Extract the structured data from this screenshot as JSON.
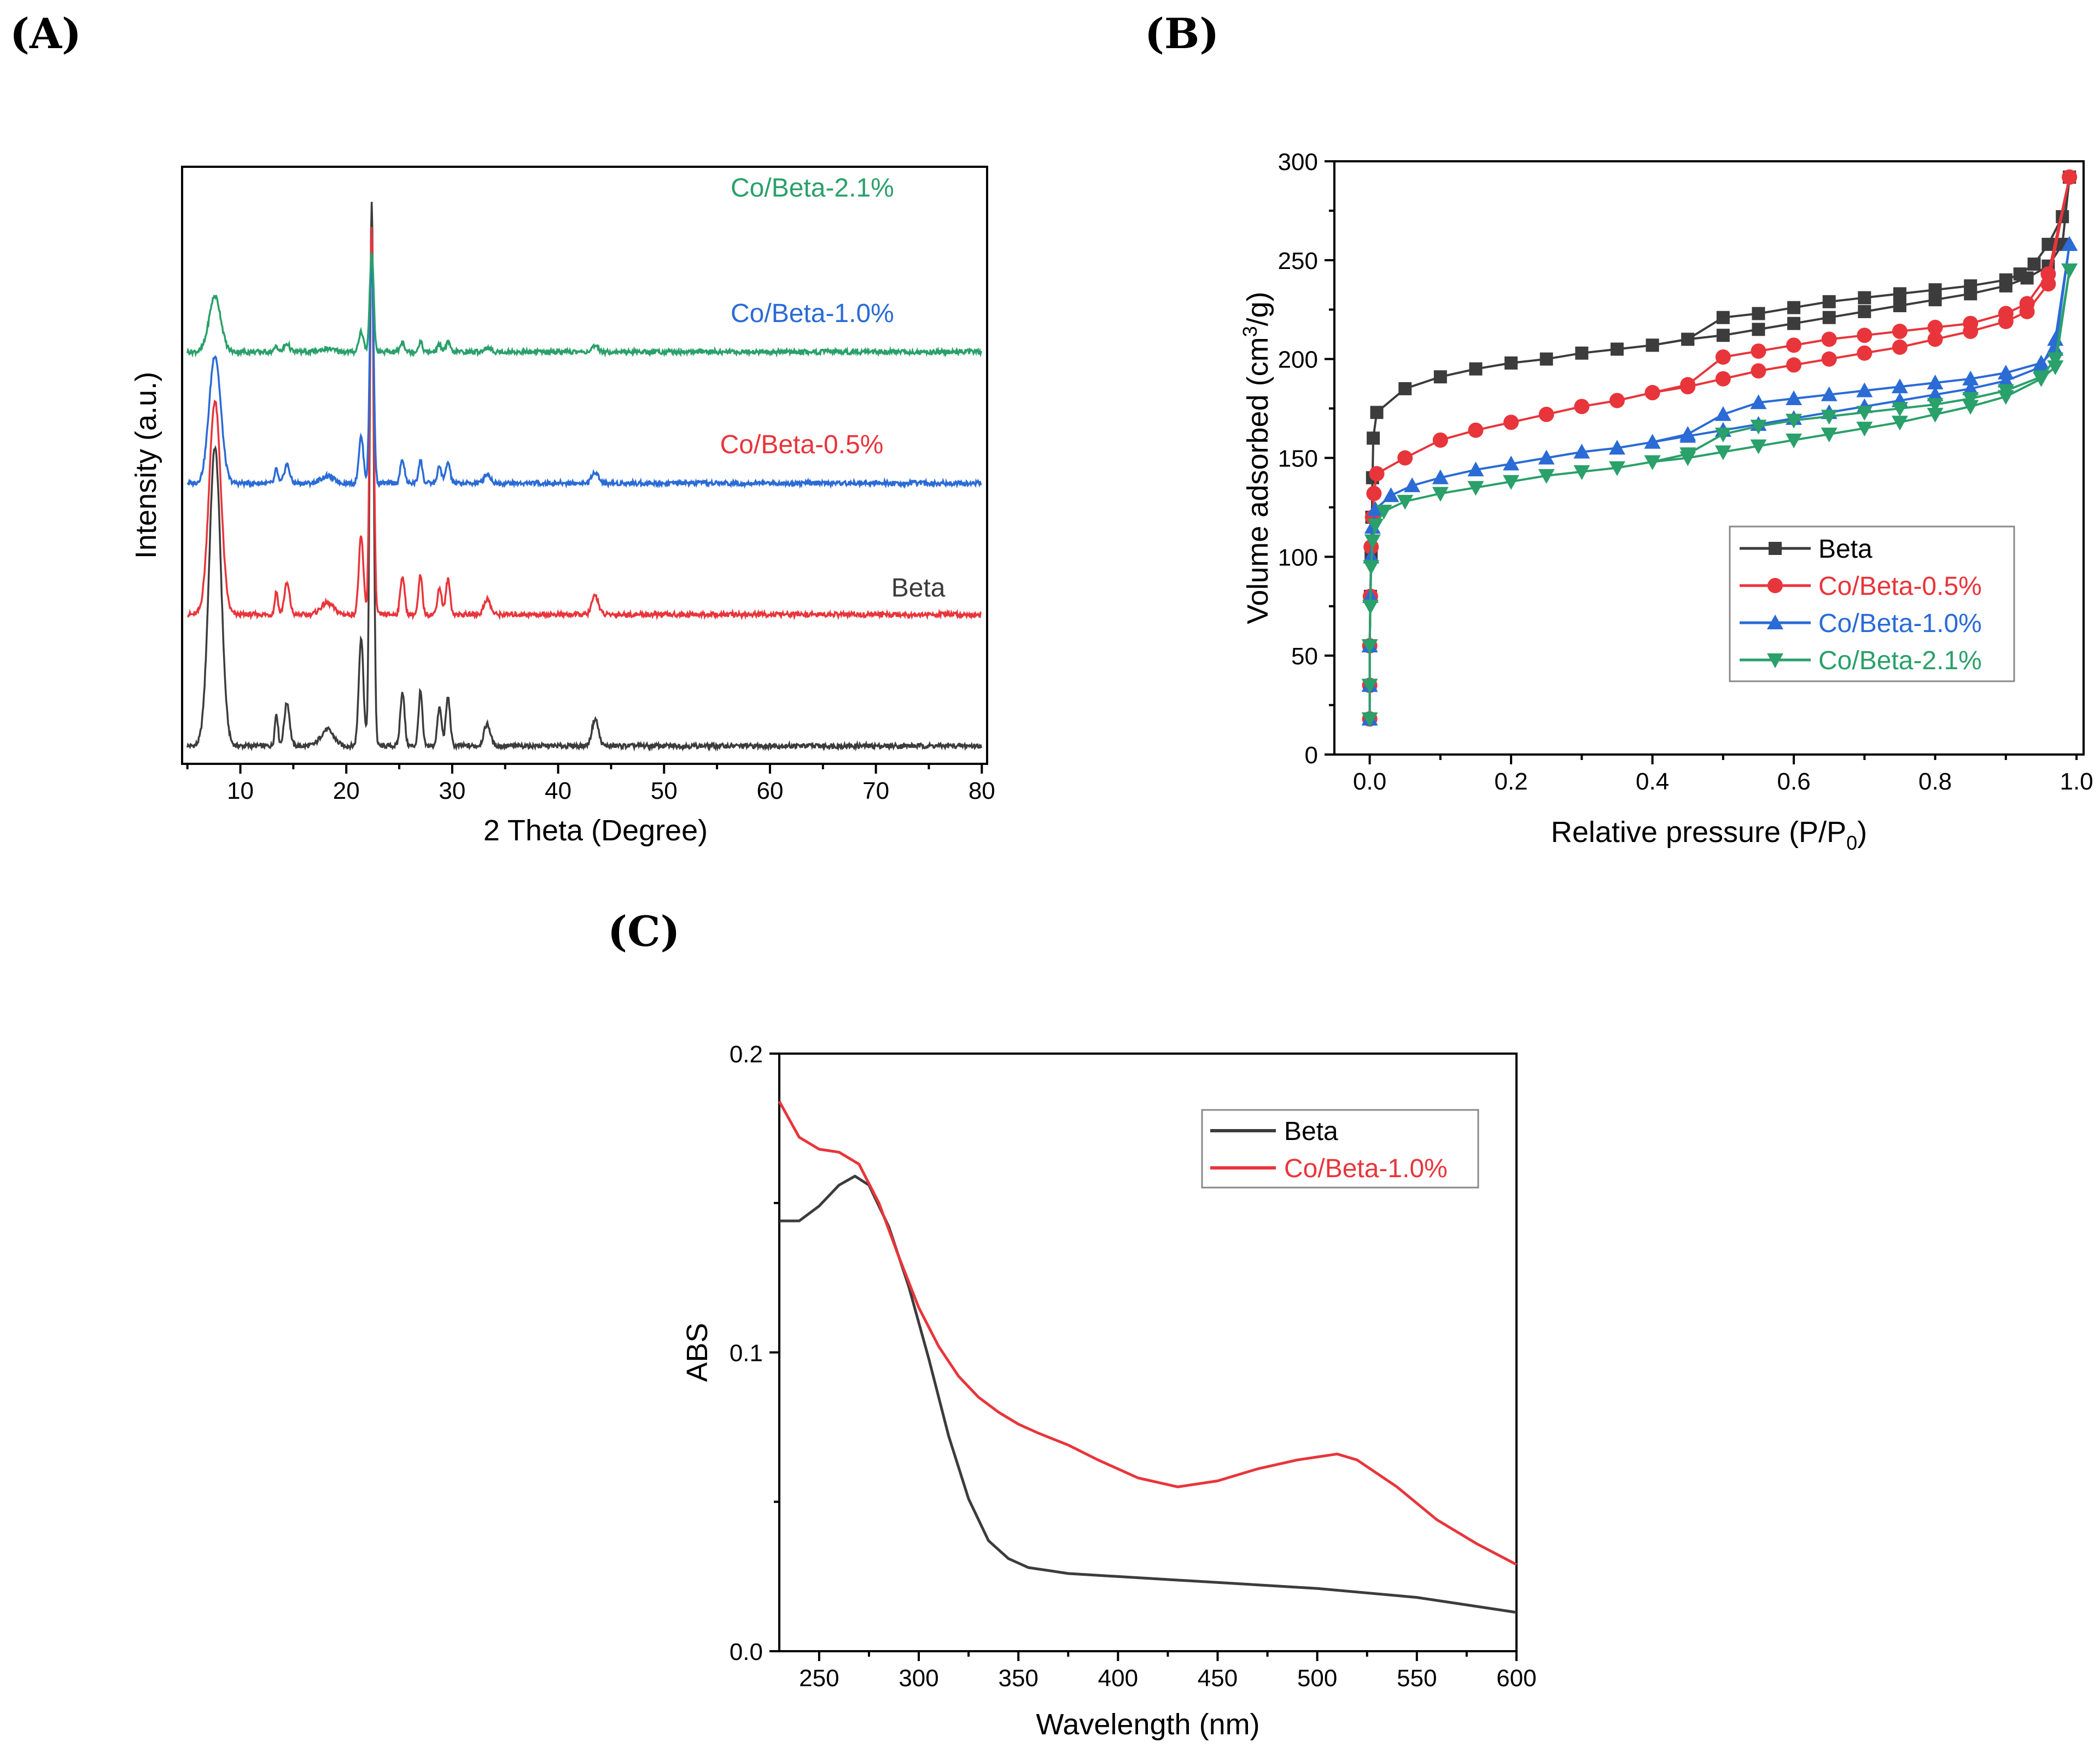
{
  "chart_data": [
    {
      "panel": "(A)",
      "type": "line",
      "title": "",
      "xlabel": "2 Theta (Degree)",
      "ylabel": "Intensity (a.u.)",
      "xlim": [
        4.5,
        80.5
      ],
      "xticks": [
        10,
        20,
        30,
        40,
        50,
        60,
        70,
        80
      ],
      "peaks": [
        {
          "pos": 7.6,
          "width": 0.55,
          "rel": 0.55
        },
        {
          "pos": 13.4,
          "width": 0.15,
          "rel": 0.06
        },
        {
          "pos": 14.4,
          "width": 0.25,
          "rel": 0.08
        },
        {
          "pos": 18.2,
          "width": 0.6,
          "rel": 0.03
        },
        {
          "pos": 21.4,
          "width": 0.22,
          "rel": 0.2
        },
        {
          "pos": 22.4,
          "width": 0.18,
          "rel": 1.0
        },
        {
          "pos": 25.3,
          "width": 0.2,
          "rel": 0.1
        },
        {
          "pos": 27.0,
          "width": 0.18,
          "rel": 0.1
        },
        {
          "pos": 28.8,
          "width": 0.2,
          "rel": 0.07
        },
        {
          "pos": 29.6,
          "width": 0.2,
          "rel": 0.09
        },
        {
          "pos": 33.3,
          "width": 0.3,
          "rel": 0.04
        },
        {
          "pos": 43.5,
          "width": 0.3,
          "rel": 0.05
        }
      ],
      "series": [
        {
          "name": "Beta",
          "color": "#3c3c3c",
          "baseline": 0.03,
          "main_peak": 0.94,
          "label_at": [
            74,
            0.28
          ]
        },
        {
          "name": "Co/Beta-0.5%",
          "color": "#e8353b",
          "baseline": 0.25,
          "main_peak": 0.9,
          "label_at": [
            63,
            0.52
          ]
        },
        {
          "name": "Co/Beta-1.0%",
          "color": "#2a6bd6",
          "baseline": 0.47,
          "main_peak": 0.86,
          "label_at": [
            64,
            0.74
          ]
        },
        {
          "name": "Co/Beta-2.1%",
          "color": "#2aa06a",
          "baseline": 0.69,
          "main_peak": 0.86,
          "label_at": [
            64,
            0.95
          ]
        }
      ]
    },
    {
      "panel": "(B)",
      "type": "line",
      "xlabel": "Relative pressure (P/P",
      "xlabel_sub": "0",
      "xlabel_tail": ")",
      "ylabel": "Volume adsorbed (cm",
      "ylabel_sup": "3",
      "ylabel_tail": "/g)",
      "xlim": [
        -0.05,
        1.01
      ],
      "ylim": [
        0,
        300
      ],
      "xticks": [
        "0.0",
        "0.2",
        "0.4",
        "0.6",
        "0.8",
        "1.0"
      ],
      "yticks": [
        0,
        50,
        100,
        150,
        200,
        250,
        300
      ],
      "legend": "right-middle",
      "series": [
        {
          "name": "Beta",
          "color": "#3c3c3c",
          "marker": "square",
          "adsorption": [
            [
              0,
              18
            ],
            [
              0,
              35
            ],
            [
              0,
              55
            ],
            [
              0.001,
              80
            ],
            [
              0.002,
              100
            ],
            [
              0.003,
              120
            ],
            [
              0.004,
              140
            ],
            [
              0.005,
              160
            ],
            [
              0.01,
              173
            ],
            [
              0.05,
              185
            ],
            [
              0.1,
              191
            ],
            [
              0.15,
              195
            ],
            [
              0.2,
              198
            ],
            [
              0.25,
              200
            ],
            [
              0.3,
              203
            ],
            [
              0.35,
              205
            ],
            [
              0.4,
              207
            ],
            [
              0.45,
              210
            ],
            [
              0.5,
              212
            ],
            [
              0.55,
              215
            ],
            [
              0.6,
              218
            ],
            [
              0.65,
              221
            ],
            [
              0.7,
              224
            ],
            [
              0.75,
              227
            ],
            [
              0.8,
              230
            ],
            [
              0.85,
              233
            ],
            [
              0.9,
              237
            ],
            [
              0.93,
              241
            ],
            [
              0.96,
              247
            ],
            [
              0.98,
              258
            ],
            [
              0.99,
              292
            ]
          ],
          "desorption": [
            [
              0.99,
              292
            ],
            [
              0.98,
              272
            ],
            [
              0.96,
              258
            ],
            [
              0.94,
              248
            ],
            [
              0.92,
              243
            ],
            [
              0.9,
              240
            ],
            [
              0.85,
              237
            ],
            [
              0.8,
              235
            ],
            [
              0.75,
              233
            ],
            [
              0.7,
              231
            ],
            [
              0.65,
              229
            ],
            [
              0.6,
              226
            ],
            [
              0.55,
              223
            ],
            [
              0.5,
              221
            ],
            [
              0.45,
              210
            ],
            [
              0.4,
              207
            ]
          ]
        },
        {
          "name": "Co/Beta-0.5%",
          "color": "#e8353b",
          "marker": "circle",
          "adsorption": [
            [
              0,
              18
            ],
            [
              0,
              35
            ],
            [
              0,
              55
            ],
            [
              0.001,
              80
            ],
            [
              0.002,
              105
            ],
            [
              0.004,
              120
            ],
            [
              0.006,
              132
            ],
            [
              0.01,
              142
            ],
            [
              0.05,
              150
            ],
            [
              0.1,
              159
            ],
            [
              0.15,
              164
            ],
            [
              0.2,
              168
            ],
            [
              0.25,
              172
            ],
            [
              0.3,
              176
            ],
            [
              0.35,
              179
            ],
            [
              0.4,
              183
            ],
            [
              0.45,
              186
            ],
            [
              0.5,
              190
            ],
            [
              0.55,
              194
            ],
            [
              0.6,
              197
            ],
            [
              0.65,
              200
            ],
            [
              0.7,
              203
            ],
            [
              0.75,
              206
            ],
            [
              0.8,
              210
            ],
            [
              0.85,
              214
            ],
            [
              0.9,
              219
            ],
            [
              0.93,
              224
            ],
            [
              0.96,
              238
            ],
            [
              0.99,
              292
            ]
          ],
          "desorption": [
            [
              0.99,
              292
            ],
            [
              0.96,
              243
            ],
            [
              0.93,
              228
            ],
            [
              0.9,
              223
            ],
            [
              0.85,
              218
            ],
            [
              0.8,
              216
            ],
            [
              0.75,
              214
            ],
            [
              0.7,
              212
            ],
            [
              0.65,
              210
            ],
            [
              0.6,
              207
            ],
            [
              0.55,
              204
            ],
            [
              0.5,
              201
            ],
            [
              0.45,
              187
            ],
            [
              0.4,
              183
            ]
          ]
        },
        {
          "name": "Co/Beta-1.0%",
          "color": "#2a6bd6",
          "marker": "triangle-up",
          "adsorption": [
            [
              0,
              18
            ],
            [
              0,
              35
            ],
            [
              0,
              55
            ],
            [
              0.001,
              80
            ],
            [
              0.002,
              100
            ],
            [
              0.004,
              115
            ],
            [
              0.008,
              124
            ],
            [
              0.03,
              131
            ],
            [
              0.06,
              136
            ],
            [
              0.1,
              140
            ],
            [
              0.15,
              144
            ],
            [
              0.2,
              147
            ],
            [
              0.25,
              150
            ],
            [
              0.3,
              153
            ],
            [
              0.35,
              155
            ],
            [
              0.4,
              158
            ],
            [
              0.45,
              161
            ],
            [
              0.5,
              164
            ],
            [
              0.55,
              167
            ],
            [
              0.6,
              170
            ],
            [
              0.65,
              173
            ],
            [
              0.7,
              176
            ],
            [
              0.75,
              179
            ],
            [
              0.8,
              182
            ],
            [
              0.85,
              185
            ],
            [
              0.9,
              189
            ],
            [
              0.95,
              196
            ],
            [
              0.97,
              210
            ],
            [
              0.99,
              258
            ]
          ],
          "desorption": [
            [
              0.99,
              258
            ],
            [
              0.97,
              205
            ],
            [
              0.95,
              198
            ],
            [
              0.9,
              193
            ],
            [
              0.85,
              190
            ],
            [
              0.8,
              188
            ],
            [
              0.75,
              186
            ],
            [
              0.7,
              184
            ],
            [
              0.65,
              182
            ],
            [
              0.6,
              180
            ],
            [
              0.55,
              178
            ],
            [
              0.5,
              172
            ],
            [
              0.45,
              162
            ],
            [
              0.4,
              158
            ]
          ]
        },
        {
          "name": "Co/Beta-2.1%",
          "color": "#2aa06a",
          "marker": "triangle-down",
          "adsorption": [
            [
              0,
              18
            ],
            [
              0,
              35
            ],
            [
              0,
              55
            ],
            [
              0.001,
              75
            ],
            [
              0.002,
              95
            ],
            [
              0.004,
              108
            ],
            [
              0.008,
              116
            ],
            [
              0.02,
              123
            ],
            [
              0.05,
              128
            ],
            [
              0.1,
              132
            ],
            [
              0.15,
              135
            ],
            [
              0.2,
              138
            ],
            [
              0.25,
              141
            ],
            [
              0.3,
              143
            ],
            [
              0.35,
              145
            ],
            [
              0.4,
              148
            ],
            [
              0.45,
              150
            ],
            [
              0.5,
              153
            ],
            [
              0.55,
              156
            ],
            [
              0.6,
              159
            ],
            [
              0.65,
              162
            ],
            [
              0.7,
              165
            ],
            [
              0.75,
              168
            ],
            [
              0.8,
              172
            ],
            [
              0.85,
              176
            ],
            [
              0.9,
              181
            ],
            [
              0.95,
              190
            ],
            [
              0.97,
              196
            ],
            [
              0.99,
              245
            ]
          ],
          "desorption": [
            [
              0.99,
              245
            ],
            [
              0.97,
              200
            ],
            [
              0.95,
              191
            ],
            [
              0.9,
              184
            ],
            [
              0.85,
              180
            ],
            [
              0.8,
              177
            ],
            [
              0.75,
              175
            ],
            [
              0.7,
              173
            ],
            [
              0.65,
              171
            ],
            [
              0.6,
              169
            ],
            [
              0.55,
              166
            ],
            [
              0.5,
              162
            ],
            [
              0.45,
              152
            ],
            [
              0.4,
              148
            ]
          ]
        }
      ]
    },
    {
      "panel": "(C)",
      "type": "line",
      "xlabel": "Wavelength (nm)",
      "ylabel": "ABS",
      "xlim": [
        230,
        600
      ],
      "ylim": [
        0,
        0.2
      ],
      "xticks": [
        250,
        300,
        350,
        400,
        450,
        500,
        550,
        600
      ],
      "yticks": [
        "0.0",
        "0.1",
        "0.2"
      ],
      "legend": "top-right",
      "series": [
        {
          "name": "Beta",
          "color": "#3c3c3c",
          "x": [
            230,
            240,
            250,
            260,
            268,
            275,
            285,
            295,
            305,
            315,
            325,
            335,
            345,
            355,
            365,
            375,
            400,
            450,
            500,
            550,
            600
          ],
          "y": [
            0.144,
            0.144,
            0.149,
            0.156,
            0.159,
            0.156,
            0.142,
            0.122,
            0.098,
            0.072,
            0.051,
            0.037,
            0.031,
            0.028,
            0.027,
            0.026,
            0.025,
            0.023,
            0.021,
            0.018,
            0.013
          ]
        },
        {
          "name": "Co/Beta-1.0%",
          "color": "#e8353b",
          "x": [
            230,
            240,
            250,
            260,
            270,
            280,
            290,
            300,
            310,
            320,
            330,
            340,
            350,
            360,
            375,
            390,
            410,
            430,
            450,
            470,
            490,
            510,
            520,
            540,
            560,
            580,
            600
          ],
          "y": [
            0.184,
            0.172,
            0.168,
            0.167,
            0.163,
            0.15,
            0.132,
            0.115,
            0.102,
            0.092,
            0.085,
            0.08,
            0.076,
            0.073,
            0.069,
            0.064,
            0.058,
            0.055,
            0.057,
            0.061,
            0.064,
            0.066,
            0.064,
            0.055,
            0.044,
            0.036,
            0.029
          ]
        }
      ]
    }
  ]
}
